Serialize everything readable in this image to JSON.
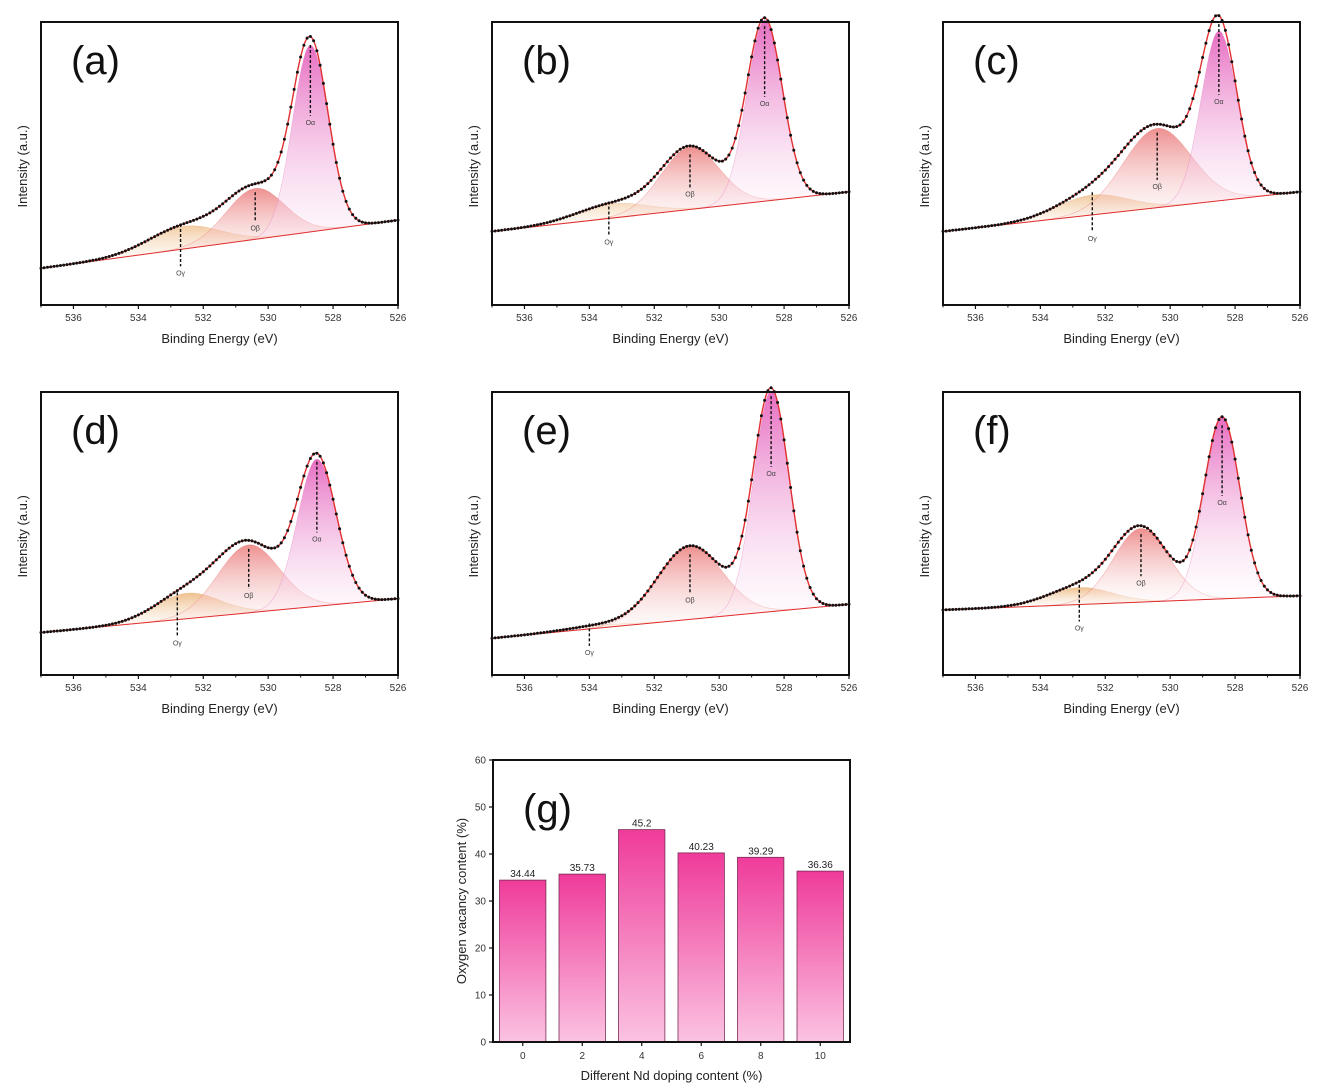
{
  "chart_data": [
    {
      "type": "line",
      "panel": "(a)",
      "xlabel": "Binding Energy (eV)",
      "ylabel": "Intensity (a.u.)",
      "xlim": [
        537,
        526
      ],
      "xticks": [
        536,
        534,
        532,
        530,
        528,
        526
      ],
      "x_reversed": true,
      "baseline": [
        0.3,
        0.13
      ],
      "components": [
        {
          "label": "Oα",
          "center": 528.7,
          "height": 0.66,
          "width": 0.55
        },
        {
          "label": "Oβ",
          "center": 530.4,
          "height": 0.18,
          "width": 0.9
        },
        {
          "label": "Oγ",
          "center": 532.6,
          "height": 0.08,
          "width": 1.1
        }
      ],
      "peak_markers": [
        {
          "label": "Oα",
          "x": 528.7
        },
        {
          "label": "Oβ",
          "x": 530.4
        },
        {
          "label": "Oγ",
          "x": 532.7
        }
      ]
    },
    {
      "type": "line",
      "panel": "(b)",
      "xlabel": "Binding Energy (eV)",
      "ylabel": "Intensity (a.u.)",
      "xlim": [
        537,
        526
      ],
      "xticks": [
        536,
        534,
        532,
        530,
        528,
        526
      ],
      "x_reversed": true,
      "baseline": [
        0.4,
        0.26
      ],
      "components": [
        {
          "label": "Oα",
          "center": 528.6,
          "height": 0.64,
          "width": 0.55
        },
        {
          "label": "Oβ",
          "center": 530.9,
          "height": 0.22,
          "width": 0.9
        },
        {
          "label": "Oγ",
          "center": 533.3,
          "height": 0.05,
          "width": 1.1
        }
      ],
      "peak_markers": [
        {
          "label": "Oα",
          "x": 528.6
        },
        {
          "label": "Oβ",
          "x": 530.9
        },
        {
          "label": "Oγ",
          "x": 533.4
        }
      ]
    },
    {
      "type": "line",
      "panel": "(c)",
      "xlabel": "Binding Energy (eV)",
      "ylabel": "Intensity (a.u.)",
      "xlim": [
        537,
        526
      ],
      "xticks": [
        536,
        534,
        532,
        530,
        528,
        526
      ],
      "x_reversed": true,
      "baseline": [
        0.4,
        0.26
      ],
      "components": [
        {
          "label": "Oα",
          "center": 528.5,
          "height": 0.6,
          "width": 0.55
        },
        {
          "label": "Oβ",
          "center": 530.4,
          "height": 0.28,
          "width": 1.05
        },
        {
          "label": "Oγ",
          "center": 532.4,
          "height": 0.07,
          "width": 1.1
        }
      ],
      "peak_markers": [
        {
          "label": "Oα",
          "x": 528.5
        },
        {
          "label": "Oβ",
          "x": 530.4
        },
        {
          "label": "Oγ",
          "x": 532.4
        }
      ]
    },
    {
      "type": "line",
      "panel": "(d)",
      "xlabel": "Binding Energy (eV)",
      "ylabel": "Intensity (a.u.)",
      "xlim": [
        537,
        526
      ],
      "xticks": [
        536,
        534,
        532,
        530,
        528,
        526
      ],
      "x_reversed": true,
      "baseline": [
        0.27,
        0.15
      ],
      "components": [
        {
          "label": "Oα",
          "center": 528.5,
          "height": 0.52,
          "width": 0.6
        },
        {
          "label": "Oβ",
          "center": 530.6,
          "height": 0.24,
          "width": 0.95
        },
        {
          "label": "Oγ",
          "center": 532.5,
          "height": 0.09,
          "width": 1.0
        }
      ],
      "peak_markers": [
        {
          "label": "Oα",
          "x": 528.5
        },
        {
          "label": "Oβ",
          "x": 530.6
        },
        {
          "label": "Oγ",
          "x": 532.8
        }
      ]
    },
    {
      "type": "line",
      "panel": "(e)",
      "xlabel": "Binding Energy (eV)",
      "ylabel": "Intensity (a.u.)",
      "xlim": [
        537,
        526
      ],
      "xticks": [
        536,
        534,
        532,
        530,
        528,
        526
      ],
      "x_reversed": true,
      "baseline": [
        0.25,
        0.13
      ],
      "components": [
        {
          "label": "Oα",
          "center": 528.4,
          "height": 0.78,
          "width": 0.55
        },
        {
          "label": "Oβ",
          "center": 530.9,
          "height": 0.26,
          "width": 1.0
        },
        {
          "label": "Oγ",
          "center": 533.8,
          "height": 0.01,
          "width": 1.0
        }
      ],
      "peak_markers": [
        {
          "label": "Oα",
          "x": 528.4
        },
        {
          "label": "Oβ",
          "x": 530.9
        },
        {
          "label": "Oγ",
          "x": 534.0
        }
      ]
    },
    {
      "type": "line",
      "panel": "(f)",
      "xlabel": "Binding Energy (eV)",
      "ylabel": "Intensity (a.u.)",
      "xlim": [
        537,
        526
      ],
      "xticks": [
        536,
        534,
        532,
        530,
        528,
        526
      ],
      "x_reversed": true,
      "baseline": [
        0.28,
        0.23
      ],
      "components": [
        {
          "label": "Oα",
          "center": 528.4,
          "height": 0.64,
          "width": 0.55
        },
        {
          "label": "Oβ",
          "center": 530.9,
          "height": 0.26,
          "width": 0.85
        },
        {
          "label": "Oγ",
          "center": 532.8,
          "height": 0.06,
          "width": 1.0
        }
      ],
      "peak_markers": [
        {
          "label": "Oα",
          "x": 528.4
        },
        {
          "label": "Oβ",
          "x": 530.9
        },
        {
          "label": "Oγ",
          "x": 532.8
        }
      ]
    },
    {
      "type": "bar",
      "panel": "(g)",
      "categories": [
        "0",
        "2",
        "4",
        "6",
        "8",
        "10"
      ],
      "values": [
        34.44,
        35.73,
        45.2,
        40.23,
        39.29,
        36.36
      ],
      "value_labels": [
        "34.44",
        "35.73",
        "45.2",
        "40.23",
        "39.29",
        "36.36"
      ],
      "xlabel": "Different Nd doping content (%)",
      "ylabel": "Oxygen vacancy content (%)",
      "ylim": [
        0,
        60
      ],
      "yticks": [
        0,
        10,
        20,
        30,
        40,
        50,
        60
      ]
    }
  ],
  "colors": {
    "fit_line": "#e0302f",
    "data_points": "#111111",
    "o_alpha": "#e57fc2",
    "o_beta": "#ea7a7a",
    "o_gamma": "#e8b07a",
    "bar_top": "#ef3b9a",
    "bar_bottom": "#fbbde0",
    "axis": "#111111"
  }
}
